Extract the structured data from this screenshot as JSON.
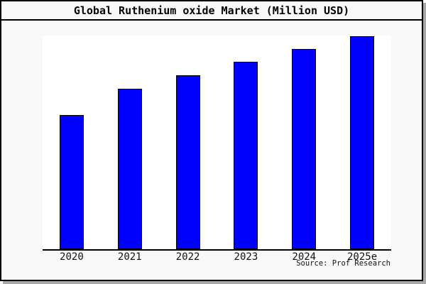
{
  "chart_data": {
    "type": "bar",
    "title": "Global Ruthenium oxide Market (Million USD)",
    "categories": [
      "2020",
      "2021",
      "2022",
      "2023",
      "2024",
      "2025e"
    ],
    "values": [
      62.8,
      75.2,
      81.5,
      87.8,
      93.8,
      99.7
    ],
    "xlabel": "",
    "ylabel": "",
    "ylim": [
      0,
      100
    ],
    "grid": false,
    "legend": "none",
    "y_axis_tick_labels": "none shown",
    "values_note": "No y-axis scale is printed on the chart; values are relative bar heights (percent of plot height) estimated from pixels, steadily rising 2020 through 2025e."
  },
  "source_text": "Source: Prof Research",
  "colors": {
    "bar_fill": "#0000ff",
    "bar_outline": "#000000",
    "figure_background": "#f8f8f8",
    "plot_background": "#ffffff",
    "frame_border": "#000000",
    "shadow": "#a8a8a8",
    "text": "#111111"
  }
}
